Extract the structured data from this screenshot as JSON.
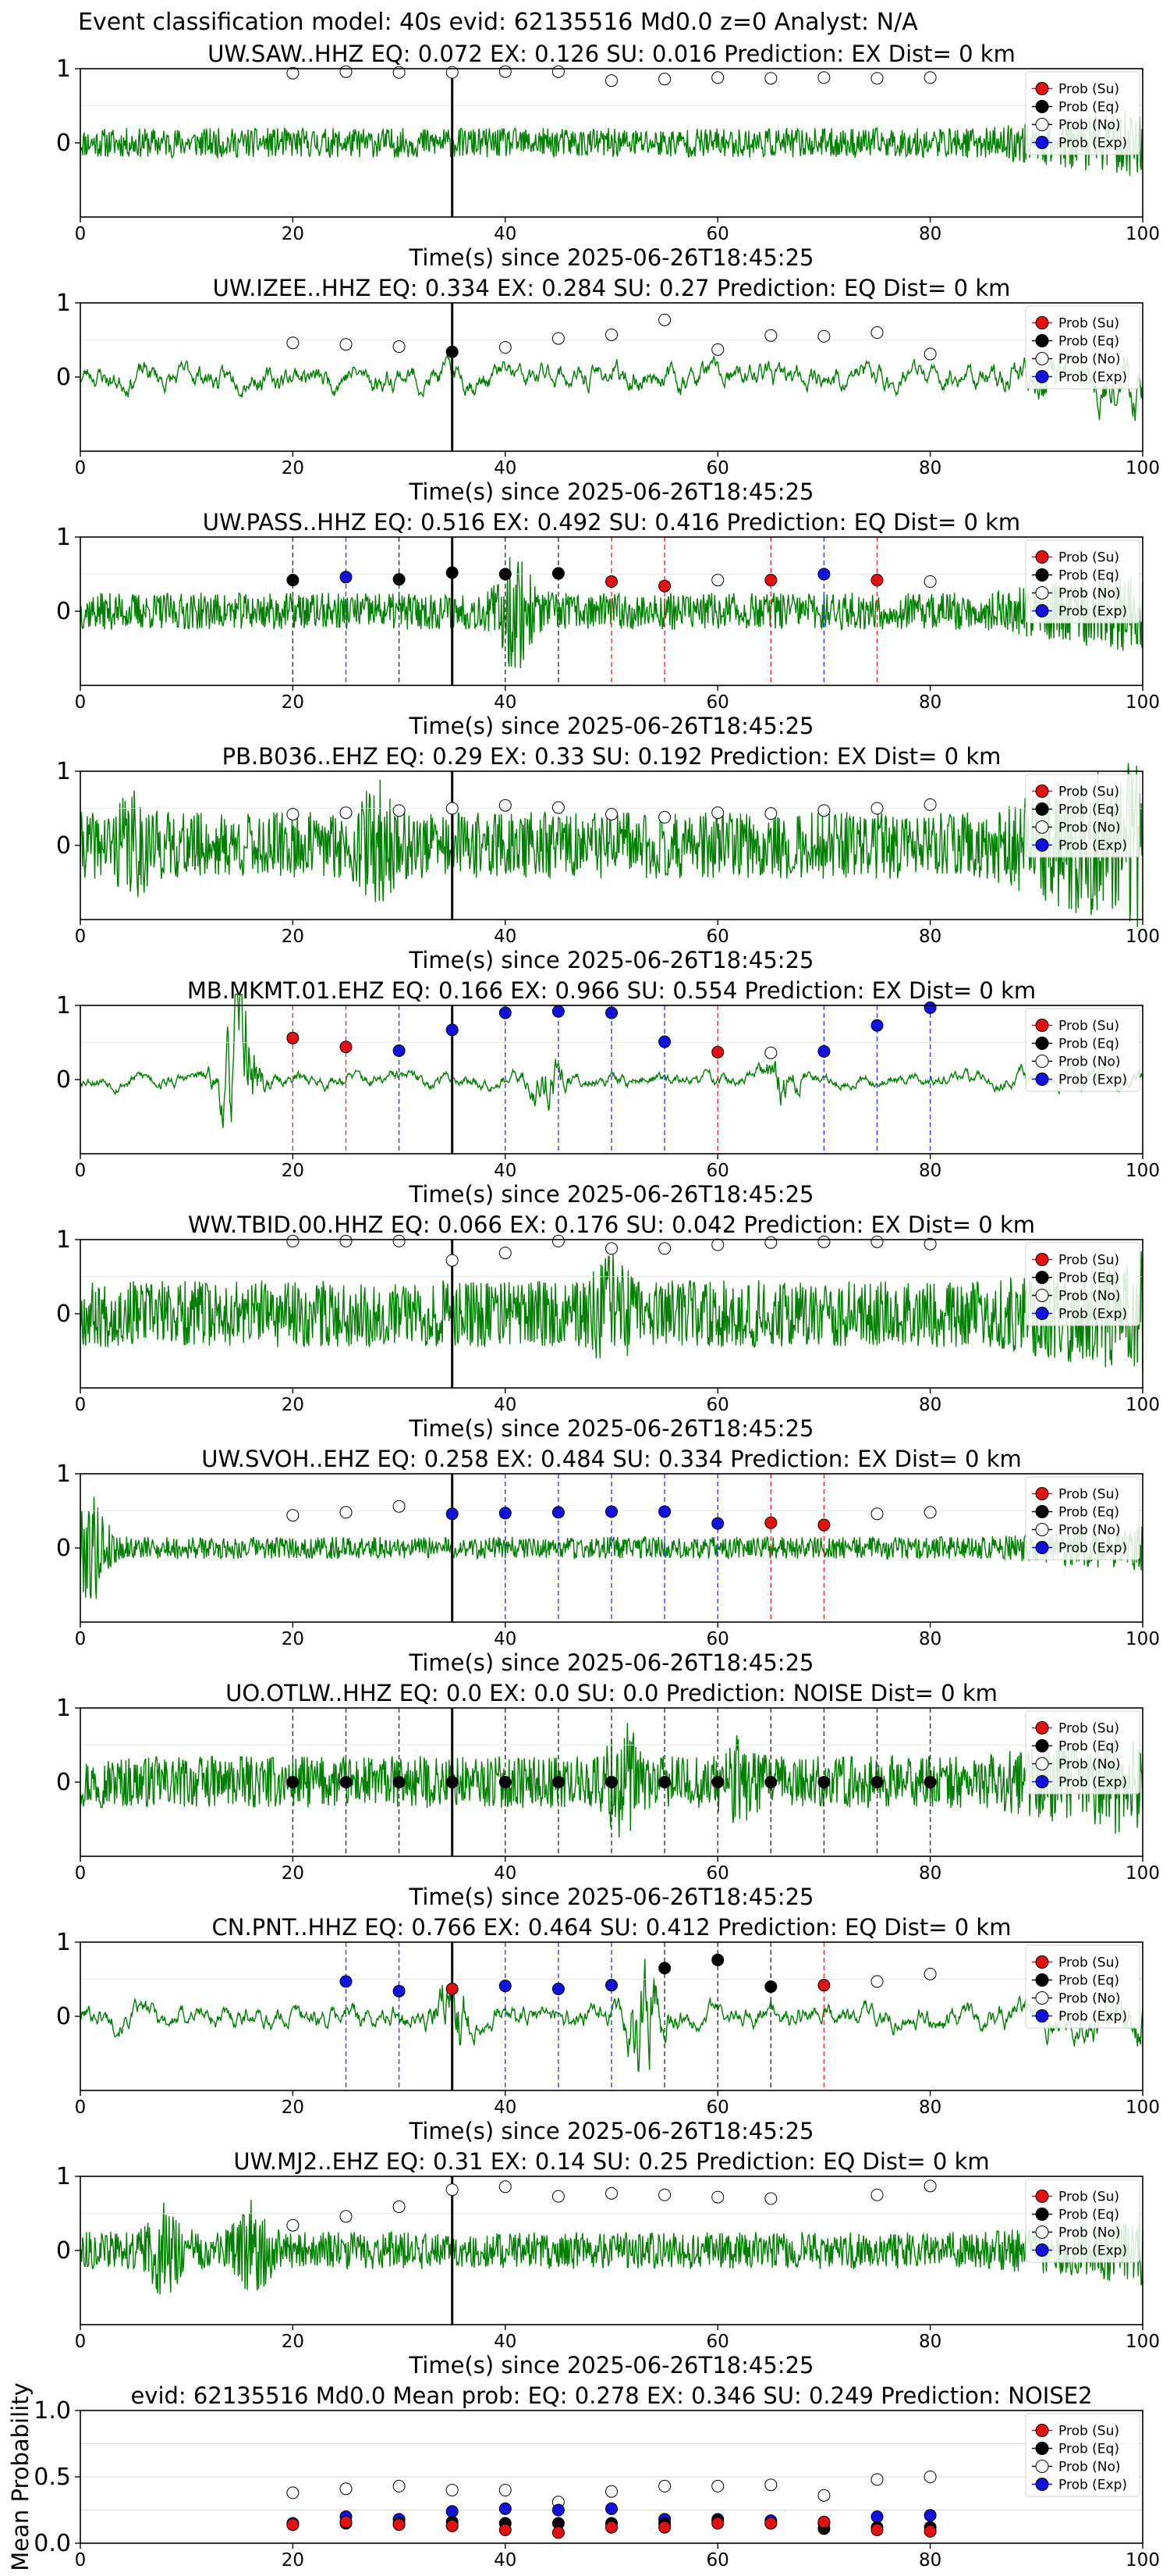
{
  "figure": {
    "suptitle": "Event classification model: 40s evid: 62135516 Md0.0 z=0 Analyst: N/A",
    "xlabel": "Time(s) since 2025-06-26T18:45:25",
    "legend_labels": [
      "Prob (Su)",
      "Prob (Eq)",
      "Prob (No)",
      "Prob (Exp)"
    ],
    "class_colors": {
      "su": "#e41010",
      "eq": "#000000",
      "no": "#ffffff",
      "exp": "#1010e0"
    },
    "waveform_color": "#008000",
    "pick_line_color": "#000000"
  },
  "chart_data": [
    {
      "type": "line",
      "panel": "station",
      "title": "UW.SAW..HHZ   EQ: 0.072  EX: 0.126  SU: 0.016   Prediction: EX    Dist= 0 km",
      "xlim": [
        0,
        100
      ],
      "ylim": [
        -1,
        1
      ],
      "xticks": [
        0,
        20,
        40,
        60,
        80,
        100
      ],
      "yticks": [
        0,
        1
      ],
      "pick_time": 35,
      "waveform": {
        "amplitude": 0.2,
        "style": "noise",
        "seed": 11,
        "taper_end": 0.45
      },
      "points": [
        {
          "x": 20,
          "y": 0.94,
          "cls": "no"
        },
        {
          "x": 25,
          "y": 0.96,
          "cls": "no"
        },
        {
          "x": 30,
          "y": 0.95,
          "cls": "no"
        },
        {
          "x": 35,
          "y": 0.95,
          "cls": "no"
        },
        {
          "x": 40,
          "y": 0.96,
          "cls": "no"
        },
        {
          "x": 45,
          "y": 0.96,
          "cls": "no"
        },
        {
          "x": 50,
          "y": 0.84,
          "cls": "no"
        },
        {
          "x": 55,
          "y": 0.86,
          "cls": "no"
        },
        {
          "x": 60,
          "y": 0.88,
          "cls": "no"
        },
        {
          "x": 65,
          "y": 0.87,
          "cls": "no"
        },
        {
          "x": 70,
          "y": 0.88,
          "cls": "no"
        },
        {
          "x": 75,
          "y": 0.87,
          "cls": "no"
        },
        {
          "x": 80,
          "y": 0.88,
          "cls": "no"
        }
      ]
    },
    {
      "type": "line",
      "panel": "station",
      "title": "UW.IZEE..HHZ   EQ: 0.334  EX: 0.284  SU: 0.27   Prediction: EQ    Dist= 0 km",
      "xlim": [
        0,
        100
      ],
      "ylim": [
        -1,
        1
      ],
      "xticks": [
        0,
        20,
        40,
        60,
        80,
        100
      ],
      "yticks": [
        0,
        1
      ],
      "pick_time": 35,
      "waveform": {
        "amplitude": 0.18,
        "style": "wavy",
        "seed": 23,
        "taper_end": 0.5
      },
      "points": [
        {
          "x": 20,
          "y": 0.46,
          "cls": "no"
        },
        {
          "x": 25,
          "y": 0.44,
          "cls": "no"
        },
        {
          "x": 30,
          "y": 0.41,
          "cls": "no"
        },
        {
          "x": 35,
          "y": 0.34,
          "cls": "eq"
        },
        {
          "x": 40,
          "y": 0.4,
          "cls": "no"
        },
        {
          "x": 45,
          "y": 0.52,
          "cls": "no"
        },
        {
          "x": 50,
          "y": 0.57,
          "cls": "no"
        },
        {
          "x": 55,
          "y": 0.77,
          "cls": "no"
        },
        {
          "x": 60,
          "y": 0.37,
          "cls": "no"
        },
        {
          "x": 65,
          "y": 0.56,
          "cls": "no"
        },
        {
          "x": 70,
          "y": 0.55,
          "cls": "no"
        },
        {
          "x": 75,
          "y": 0.6,
          "cls": "no"
        },
        {
          "x": 80,
          "y": 0.31,
          "cls": "no"
        }
      ]
    },
    {
      "type": "line",
      "panel": "station",
      "title": "UW.PASS..HHZ   EQ: 0.516  EX: 0.492  SU: 0.416   Prediction: EQ    Dist= 0 km",
      "xlim": [
        0,
        100
      ],
      "ylim": [
        -1,
        1
      ],
      "xticks": [
        0,
        20,
        40,
        60,
        80,
        100
      ],
      "yticks": [
        0,
        1
      ],
      "pick_time": 35,
      "waveform": {
        "amplitude": 0.25,
        "style": "noise",
        "seed": 37,
        "bursts": [
          [
            41,
            0.6
          ]
        ],
        "taper_end": 0.45
      },
      "points": [
        {
          "x": 20,
          "y": 0.42,
          "cls": "eq"
        },
        {
          "x": 25,
          "y": 0.46,
          "cls": "exp"
        },
        {
          "x": 30,
          "y": 0.43,
          "cls": "eq"
        },
        {
          "x": 35,
          "y": 0.52,
          "cls": "eq"
        },
        {
          "x": 40,
          "y": 0.5,
          "cls": "eq"
        },
        {
          "x": 45,
          "y": 0.51,
          "cls": "eq"
        },
        {
          "x": 50,
          "y": 0.4,
          "cls": "su"
        },
        {
          "x": 55,
          "y": 0.34,
          "cls": "su"
        },
        {
          "x": 60,
          "y": 0.42,
          "cls": "no"
        },
        {
          "x": 65,
          "y": 0.42,
          "cls": "su"
        },
        {
          "x": 70,
          "y": 0.5,
          "cls": "exp"
        },
        {
          "x": 75,
          "y": 0.42,
          "cls": "su"
        },
        {
          "x": 80,
          "y": 0.4,
          "cls": "no"
        }
      ]
    },
    {
      "type": "line",
      "panel": "station",
      "title": "PB.B036..EHZ   EQ: 0.29  EX: 0.33  SU: 0.192   Prediction: EX    Dist= 0 km",
      "xlim": [
        0,
        100
      ],
      "ylim": [
        -1,
        1
      ],
      "xticks": [
        0,
        20,
        40,
        60,
        80,
        100
      ],
      "yticks": [
        0,
        1
      ],
      "pick_time": 35,
      "waveform": {
        "amplitude": 0.45,
        "style": "noise",
        "seed": 41,
        "bursts": [
          [
            28,
            0.45
          ],
          [
            5,
            0.3
          ]
        ],
        "taper_end": 0.6
      },
      "points": [
        {
          "x": 20,
          "y": 0.42,
          "cls": "no"
        },
        {
          "x": 25,
          "y": 0.44,
          "cls": "no"
        },
        {
          "x": 30,
          "y": 0.47,
          "cls": "no"
        },
        {
          "x": 35,
          "y": 0.5,
          "cls": "no"
        },
        {
          "x": 40,
          "y": 0.54,
          "cls": "no"
        },
        {
          "x": 45,
          "y": 0.51,
          "cls": "no"
        },
        {
          "x": 50,
          "y": 0.42,
          "cls": "no"
        },
        {
          "x": 55,
          "y": 0.38,
          "cls": "no"
        },
        {
          "x": 60,
          "y": 0.44,
          "cls": "no"
        },
        {
          "x": 65,
          "y": 0.43,
          "cls": "no"
        },
        {
          "x": 70,
          "y": 0.47,
          "cls": "no"
        },
        {
          "x": 75,
          "y": 0.5,
          "cls": "no"
        },
        {
          "x": 80,
          "y": 0.55,
          "cls": "no"
        }
      ]
    },
    {
      "type": "line",
      "panel": "station",
      "title": "MB.MKMT.01.EHZ   EQ: 0.166  EX: 0.966  SU: 0.554   Prediction: EX    Dist= 0 km",
      "xlim": [
        0,
        100
      ],
      "ylim": [
        -1,
        1
      ],
      "xticks": [
        0,
        20,
        40,
        60,
        80,
        100
      ],
      "yticks": [
        0,
        1
      ],
      "pick_time": 35,
      "waveform": {
        "amplitude": 0.1,
        "style": "wavy",
        "seed": 53,
        "bursts": [
          [
            15,
            1.2
          ],
          [
            44,
            0.35
          ],
          [
            66,
            0.25
          ]
        ],
        "taper_end": 0.35
      },
      "points": [
        {
          "x": 20,
          "y": 0.56,
          "cls": "su"
        },
        {
          "x": 25,
          "y": 0.44,
          "cls": "su"
        },
        {
          "x": 30,
          "y": 0.39,
          "cls": "exp"
        },
        {
          "x": 35,
          "y": 0.67,
          "cls": "exp"
        },
        {
          "x": 40,
          "y": 0.9,
          "cls": "exp"
        },
        {
          "x": 45,
          "y": 0.92,
          "cls": "exp"
        },
        {
          "x": 50,
          "y": 0.9,
          "cls": "exp"
        },
        {
          "x": 55,
          "y": 0.51,
          "cls": "exp"
        },
        {
          "x": 60,
          "y": 0.37,
          "cls": "su"
        },
        {
          "x": 65,
          "y": 0.36,
          "cls": "no"
        },
        {
          "x": 70,
          "y": 0.38,
          "cls": "exp"
        },
        {
          "x": 75,
          "y": 0.73,
          "cls": "exp"
        },
        {
          "x": 80,
          "y": 0.97,
          "cls": "exp"
        }
      ]
    },
    {
      "type": "line",
      "panel": "station",
      "title": "WW.TBID.00.HHZ   EQ: 0.066  EX: 0.176  SU: 0.042   Prediction: EX    Dist= 0 km",
      "xlim": [
        0,
        100
      ],
      "ylim": [
        -1,
        1
      ],
      "xticks": [
        0,
        20,
        40,
        60,
        80,
        100
      ],
      "yticks": [
        0,
        1
      ],
      "pick_time": 35,
      "waveform": {
        "amplitude": 0.45,
        "style": "noise",
        "seed": 67,
        "bursts": [
          [
            50,
            0.4
          ]
        ],
        "taper_end": 0.3
      },
      "points": [
        {
          "x": 20,
          "y": 0.98,
          "cls": "no"
        },
        {
          "x": 25,
          "y": 0.98,
          "cls": "no"
        },
        {
          "x": 30,
          "y": 0.98,
          "cls": "no"
        },
        {
          "x": 35,
          "y": 0.72,
          "cls": "no"
        },
        {
          "x": 40,
          "y": 0.82,
          "cls": "no"
        },
        {
          "x": 45,
          "y": 0.98,
          "cls": "no"
        },
        {
          "x": 50,
          "y": 0.88,
          "cls": "no"
        },
        {
          "x": 55,
          "y": 0.88,
          "cls": "no"
        },
        {
          "x": 60,
          "y": 0.93,
          "cls": "no"
        },
        {
          "x": 65,
          "y": 0.96,
          "cls": "no"
        },
        {
          "x": 70,
          "y": 0.97,
          "cls": "no"
        },
        {
          "x": 75,
          "y": 0.97,
          "cls": "no"
        },
        {
          "x": 80,
          "y": 0.94,
          "cls": "no"
        }
      ]
    },
    {
      "type": "line",
      "panel": "station",
      "title": "UW.SVOH..EHZ   EQ: 0.258  EX: 0.484  SU: 0.334   Prediction: EX    Dist= 0 km",
      "xlim": [
        0,
        100
      ],
      "ylim": [
        -1,
        1
      ],
      "xticks": [
        0,
        20,
        40,
        60,
        80,
        100
      ],
      "yticks": [
        0,
        1
      ],
      "pick_time": 35,
      "waveform": {
        "amplitude": 0.15,
        "style": "noise",
        "seed": 79,
        "bursts": [
          [
            1,
            0.6
          ]
        ],
        "taper_end": 0.4
      },
      "points": [
        {
          "x": 20,
          "y": 0.44,
          "cls": "no"
        },
        {
          "x": 25,
          "y": 0.48,
          "cls": "no"
        },
        {
          "x": 30,
          "y": 0.56,
          "cls": "no"
        },
        {
          "x": 35,
          "y": 0.46,
          "cls": "exp"
        },
        {
          "x": 40,
          "y": 0.47,
          "cls": "exp"
        },
        {
          "x": 45,
          "y": 0.48,
          "cls": "exp"
        },
        {
          "x": 50,
          "y": 0.49,
          "cls": "exp"
        },
        {
          "x": 55,
          "y": 0.49,
          "cls": "exp"
        },
        {
          "x": 60,
          "y": 0.33,
          "cls": "exp"
        },
        {
          "x": 65,
          "y": 0.34,
          "cls": "su"
        },
        {
          "x": 70,
          "y": 0.31,
          "cls": "su"
        },
        {
          "x": 75,
          "y": 0.46,
          "cls": "no"
        },
        {
          "x": 80,
          "y": 0.48,
          "cls": "no"
        }
      ]
    },
    {
      "type": "line",
      "panel": "station",
      "title": "UO.OTLW..HHZ   EQ: 0.0  EX: 0.0  SU: 0.0   Prediction: NOISE    Dist= 0 km",
      "xlim": [
        0,
        100
      ],
      "ylim": [
        -1,
        1
      ],
      "xticks": [
        0,
        20,
        40,
        60,
        80,
        100
      ],
      "yticks": [
        0,
        1
      ],
      "pick_time": 35,
      "waveform": {
        "amplitude": 0.35,
        "style": "noise",
        "seed": 97,
        "bursts": [
          [
            51,
            0.5
          ],
          [
            62,
            0.3
          ]
        ],
        "taper_end": 0.4
      },
      "points": [
        {
          "x": 20,
          "y": 0.0,
          "cls": "eq"
        },
        {
          "x": 25,
          "y": 0.0,
          "cls": "eq"
        },
        {
          "x": 30,
          "y": 0.0,
          "cls": "eq"
        },
        {
          "x": 35,
          "y": 0.0,
          "cls": "eq"
        },
        {
          "x": 40,
          "y": 0.0,
          "cls": "eq"
        },
        {
          "x": 45,
          "y": 0.0,
          "cls": "eq"
        },
        {
          "x": 50,
          "y": 0.0,
          "cls": "eq"
        },
        {
          "x": 55,
          "y": 0.0,
          "cls": "eq"
        },
        {
          "x": 60,
          "y": 0.0,
          "cls": "eq"
        },
        {
          "x": 65,
          "y": 0.0,
          "cls": "eq"
        },
        {
          "x": 70,
          "y": 0.0,
          "cls": "eq"
        },
        {
          "x": 75,
          "y": 0.0,
          "cls": "eq"
        },
        {
          "x": 80,
          "y": 0.0,
          "cls": "eq"
        }
      ]
    },
    {
      "type": "line",
      "panel": "station",
      "title": "CN.PNT..HHZ   EQ: 0.766  EX: 0.464  SU: 0.412   Prediction: EQ    Dist= 0 km",
      "xlim": [
        0,
        100
      ],
      "ylim": [
        -1,
        1
      ],
      "xticks": [
        0,
        20,
        40,
        60,
        80,
        100
      ],
      "yticks": [
        0,
        1
      ],
      "pick_time": 35,
      "waveform": {
        "amplitude": 0.16,
        "style": "wavy",
        "seed": 101,
        "bursts": [
          [
            35,
            0.45
          ],
          [
            53,
            0.8
          ]
        ],
        "taper_end": 0.4
      },
      "points": [
        {
          "x": 25,
          "y": 0.47,
          "cls": "exp"
        },
        {
          "x": 30,
          "y": 0.34,
          "cls": "exp"
        },
        {
          "x": 35,
          "y": 0.37,
          "cls": "su"
        },
        {
          "x": 40,
          "y": 0.41,
          "cls": "exp"
        },
        {
          "x": 45,
          "y": 0.37,
          "cls": "exp"
        },
        {
          "x": 50,
          "y": 0.42,
          "cls": "exp"
        },
        {
          "x": 55,
          "y": 0.65,
          "cls": "eq"
        },
        {
          "x": 60,
          "y": 0.76,
          "cls": "eq"
        },
        {
          "x": 65,
          "y": 0.4,
          "cls": "eq"
        },
        {
          "x": 70,
          "y": 0.42,
          "cls": "su"
        },
        {
          "x": 75,
          "y": 0.47,
          "cls": "no"
        },
        {
          "x": 80,
          "y": 0.57,
          "cls": "no"
        }
      ]
    },
    {
      "type": "line",
      "panel": "station",
      "title": "UW.MJ2..EHZ   EQ: 0.31  EX: 0.14  SU: 0.25   Prediction: EQ    Dist= 0 km",
      "xlim": [
        0,
        100
      ],
      "ylim": [
        -1,
        1
      ],
      "xticks": [
        0,
        20,
        40,
        60,
        80,
        100
      ],
      "yticks": [
        0,
        1
      ],
      "pick_time": 35,
      "waveform": {
        "amplitude": 0.25,
        "style": "noise",
        "seed": 113,
        "bursts": [
          [
            16,
            0.55
          ],
          [
            8,
            0.4
          ]
        ],
        "taper_end": 0.3
      },
      "points": [
        {
          "x": 20,
          "y": 0.34,
          "cls": "no"
        },
        {
          "x": 25,
          "y": 0.46,
          "cls": "no"
        },
        {
          "x": 30,
          "y": 0.59,
          "cls": "no"
        },
        {
          "x": 35,
          "y": 0.82,
          "cls": "no"
        },
        {
          "x": 40,
          "y": 0.86,
          "cls": "no"
        },
        {
          "x": 45,
          "y": 0.73,
          "cls": "no"
        },
        {
          "x": 50,
          "y": 0.77,
          "cls": "no"
        },
        {
          "x": 55,
          "y": 0.75,
          "cls": "no"
        },
        {
          "x": 60,
          "y": 0.72,
          "cls": "no"
        },
        {
          "x": 65,
          "y": 0.7,
          "cls": "no"
        },
        {
          "x": 75,
          "y": 0.75,
          "cls": "no"
        },
        {
          "x": 80,
          "y": 0.87,
          "cls": "no"
        }
      ]
    },
    {
      "type": "scatter",
      "panel": "mean",
      "title": "evid: 62135516  Md0.0   Mean prob:   EQ: 0.278  EX: 0.346  SU: 0.249   Prediction: NOISE2",
      "ylabel": "Mean Probability",
      "xlim": [
        0,
        100
      ],
      "ylim": [
        0,
        1
      ],
      "xticks": [
        0,
        20,
        40,
        60,
        80,
        100
      ],
      "yticks": [
        0.0,
        0.5,
        1.0
      ],
      "x": [
        20,
        25,
        30,
        35,
        40,
        45,
        50,
        55,
        60,
        65,
        70,
        75,
        80
      ],
      "series": [
        {
          "cls": "no",
          "values": [
            0.38,
            0.41,
            0.43,
            0.4,
            0.4,
            0.31,
            0.39,
            0.43,
            0.43,
            0.44,
            0.36,
            0.48,
            0.5
          ]
        },
        {
          "cls": "exp",
          "values": [
            0.15,
            0.2,
            0.18,
            0.24,
            0.26,
            0.25,
            0.26,
            0.18,
            0.18,
            0.17,
            0.15,
            0.2,
            0.21
          ]
        },
        {
          "cls": "eq",
          "values": [
            0.14,
            0.15,
            0.15,
            0.16,
            0.15,
            0.15,
            0.15,
            0.15,
            0.17,
            0.15,
            0.11,
            0.12,
            0.12
          ]
        },
        {
          "cls": "su",
          "values": [
            0.14,
            0.16,
            0.14,
            0.13,
            0.1,
            0.08,
            0.12,
            0.12,
            0.15,
            0.15,
            0.16,
            0.1,
            0.09
          ]
        }
      ]
    }
  ]
}
